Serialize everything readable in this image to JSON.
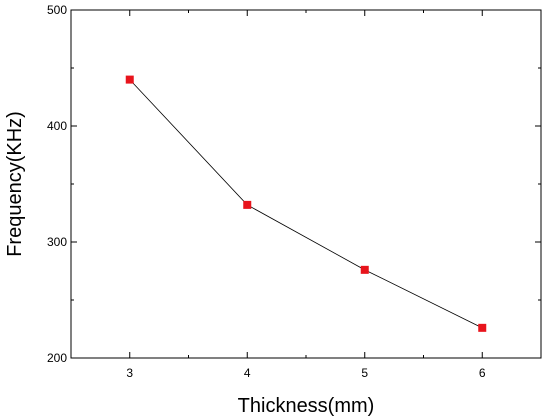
{
  "chart_data": {
    "type": "line",
    "xlabel": "Thickness(mm)",
    "ylabel": "Frequency(KHz)",
    "x": [
      3,
      4,
      5,
      6
    ],
    "series": [
      {
        "values": [
          440,
          332,
          276,
          226
        ]
      }
    ],
    "xlim": [
      2.5,
      6.5
    ],
    "ylim": [
      200,
      500
    ],
    "xticks": [
      "3",
      "4",
      "5",
      "6"
    ],
    "yticks": [
      "200",
      "300",
      "400",
      "500"
    ],
    "grid": false,
    "marker": "square",
    "colors": {
      "marker": "#e8141c",
      "line": "#000000",
      "axis": "#000000"
    }
  }
}
